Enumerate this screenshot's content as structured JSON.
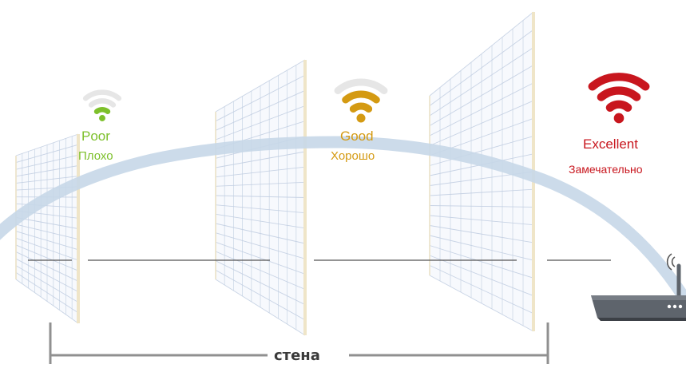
{
  "levels": [
    {
      "key": "poor",
      "en": "Poor",
      "ru": "Плохо",
      "color": "#7dc02b",
      "bars_lit": 1
    },
    {
      "key": "good",
      "en": "Good",
      "ru": "Хорошо",
      "color": "#d49a12",
      "bars_lit": 2
    },
    {
      "key": "excellent",
      "en": "Excellent",
      "ru": "Замечательно",
      "color": "#c8161e",
      "bars_lit": 3
    }
  ],
  "wall_label": "стена",
  "colors": {
    "signal_arc": "#c6d7e8",
    "wall_grid": "#c0cde0",
    "wall_post": "#efe5c8",
    "router_body": "#5e646c",
    "leader_line": "#555555"
  },
  "icons": [
    "wifi-icon",
    "router-icon",
    "antenna-signal-icon"
  ]
}
